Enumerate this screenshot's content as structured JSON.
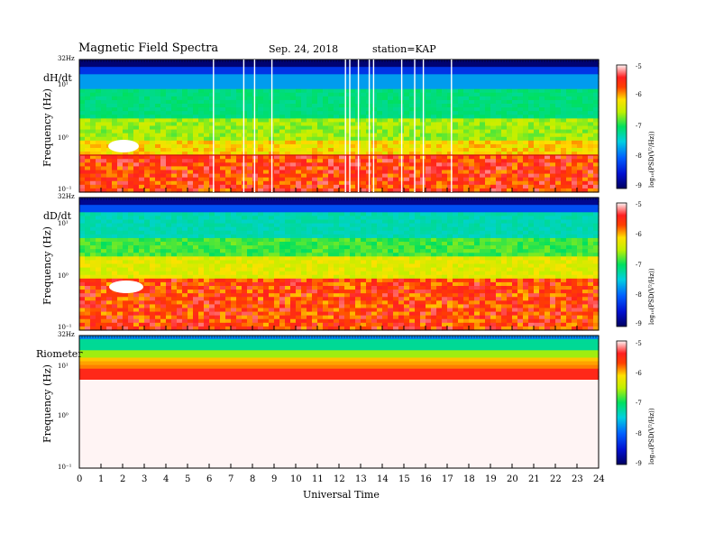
{
  "header": {
    "title": "Magnetic  Field  Spectra",
    "date": "Sep. 24, 2018",
    "station": "station=KAP"
  },
  "xaxis_label": "Universal Time",
  "xticks": [
    "0",
    "1",
    "2",
    "3",
    "4",
    "5",
    "6",
    "7",
    "8",
    "9",
    "10",
    "11",
    "12",
    "13",
    "14",
    "15",
    "16",
    "17",
    "18",
    "19",
    "20",
    "21",
    "22",
    "23",
    "24"
  ],
  "colorbar_ticks": [
    "-5",
    "-6",
    "-7",
    "-8",
    "-9"
  ],
  "colorbar_label": "log₁₀(PSD(V²/Hz))",
  "panels": [
    {
      "name": "dH/dt",
      "ylabel": "Frequency (Hz)",
      "top_label": "32Hz",
      "yticks": [
        "10¹",
        "10⁰",
        "10⁻¹"
      ]
    },
    {
      "name": "dD/dt",
      "ylabel": "Frequency (Hz)",
      "top_label": "32Hz",
      "yticks": [
        "10¹",
        "10⁰",
        "10⁻¹"
      ]
    },
    {
      "name": "Riometer",
      "ylabel": "Frequency (Hz)",
      "top_label": "32Hz",
      "yticks": [
        "10¹",
        "10⁰",
        "10⁻¹"
      ]
    }
  ],
  "chart_data": [
    {
      "type": "heatmap",
      "title": "dH/dt",
      "xlabel": "Universal Time",
      "ylabel": "Frequency (Hz)",
      "xlim": [
        0,
        24
      ],
      "ylim": [
        0.1,
        32
      ],
      "yscale": "log",
      "colorbar": {
        "label": "log10(PSD(V^2/Hz))",
        "range": [
          -9,
          -5
        ]
      },
      "gap_hours": [
        6.2,
        7.6,
        8.1,
        8.9,
        12.3,
        12.5,
        12.9,
        13.4,
        13.6,
        14.9,
        15.5,
        15.9,
        17.2
      ]
    },
    {
      "type": "heatmap",
      "title": "dD/dt",
      "xlabel": "Universal Time",
      "ylabel": "Frequency (Hz)",
      "xlim": [
        0,
        24
      ],
      "ylim": [
        0.1,
        32
      ],
      "yscale": "log",
      "colorbar": {
        "label": "log10(PSD(V^2/Hz))",
        "range": [
          -9,
          -5
        ]
      }
    },
    {
      "type": "heatmap",
      "title": "Riometer",
      "xlabel": "Universal Time",
      "ylabel": "Frequency (Hz)",
      "xlim": [
        0,
        24
      ],
      "ylim": [
        0.1,
        32
      ],
      "yscale": "log",
      "colorbar": {
        "label": "log10(PSD(V^2/Hz))",
        "range": [
          -9,
          -5
        ]
      }
    }
  ],
  "colors": {
    "c9": "#000080",
    "c8": "#0050ff",
    "c7": "#00e0a0",
    "c6": "#ff2020",
    "c5": "#fff0f0"
  }
}
